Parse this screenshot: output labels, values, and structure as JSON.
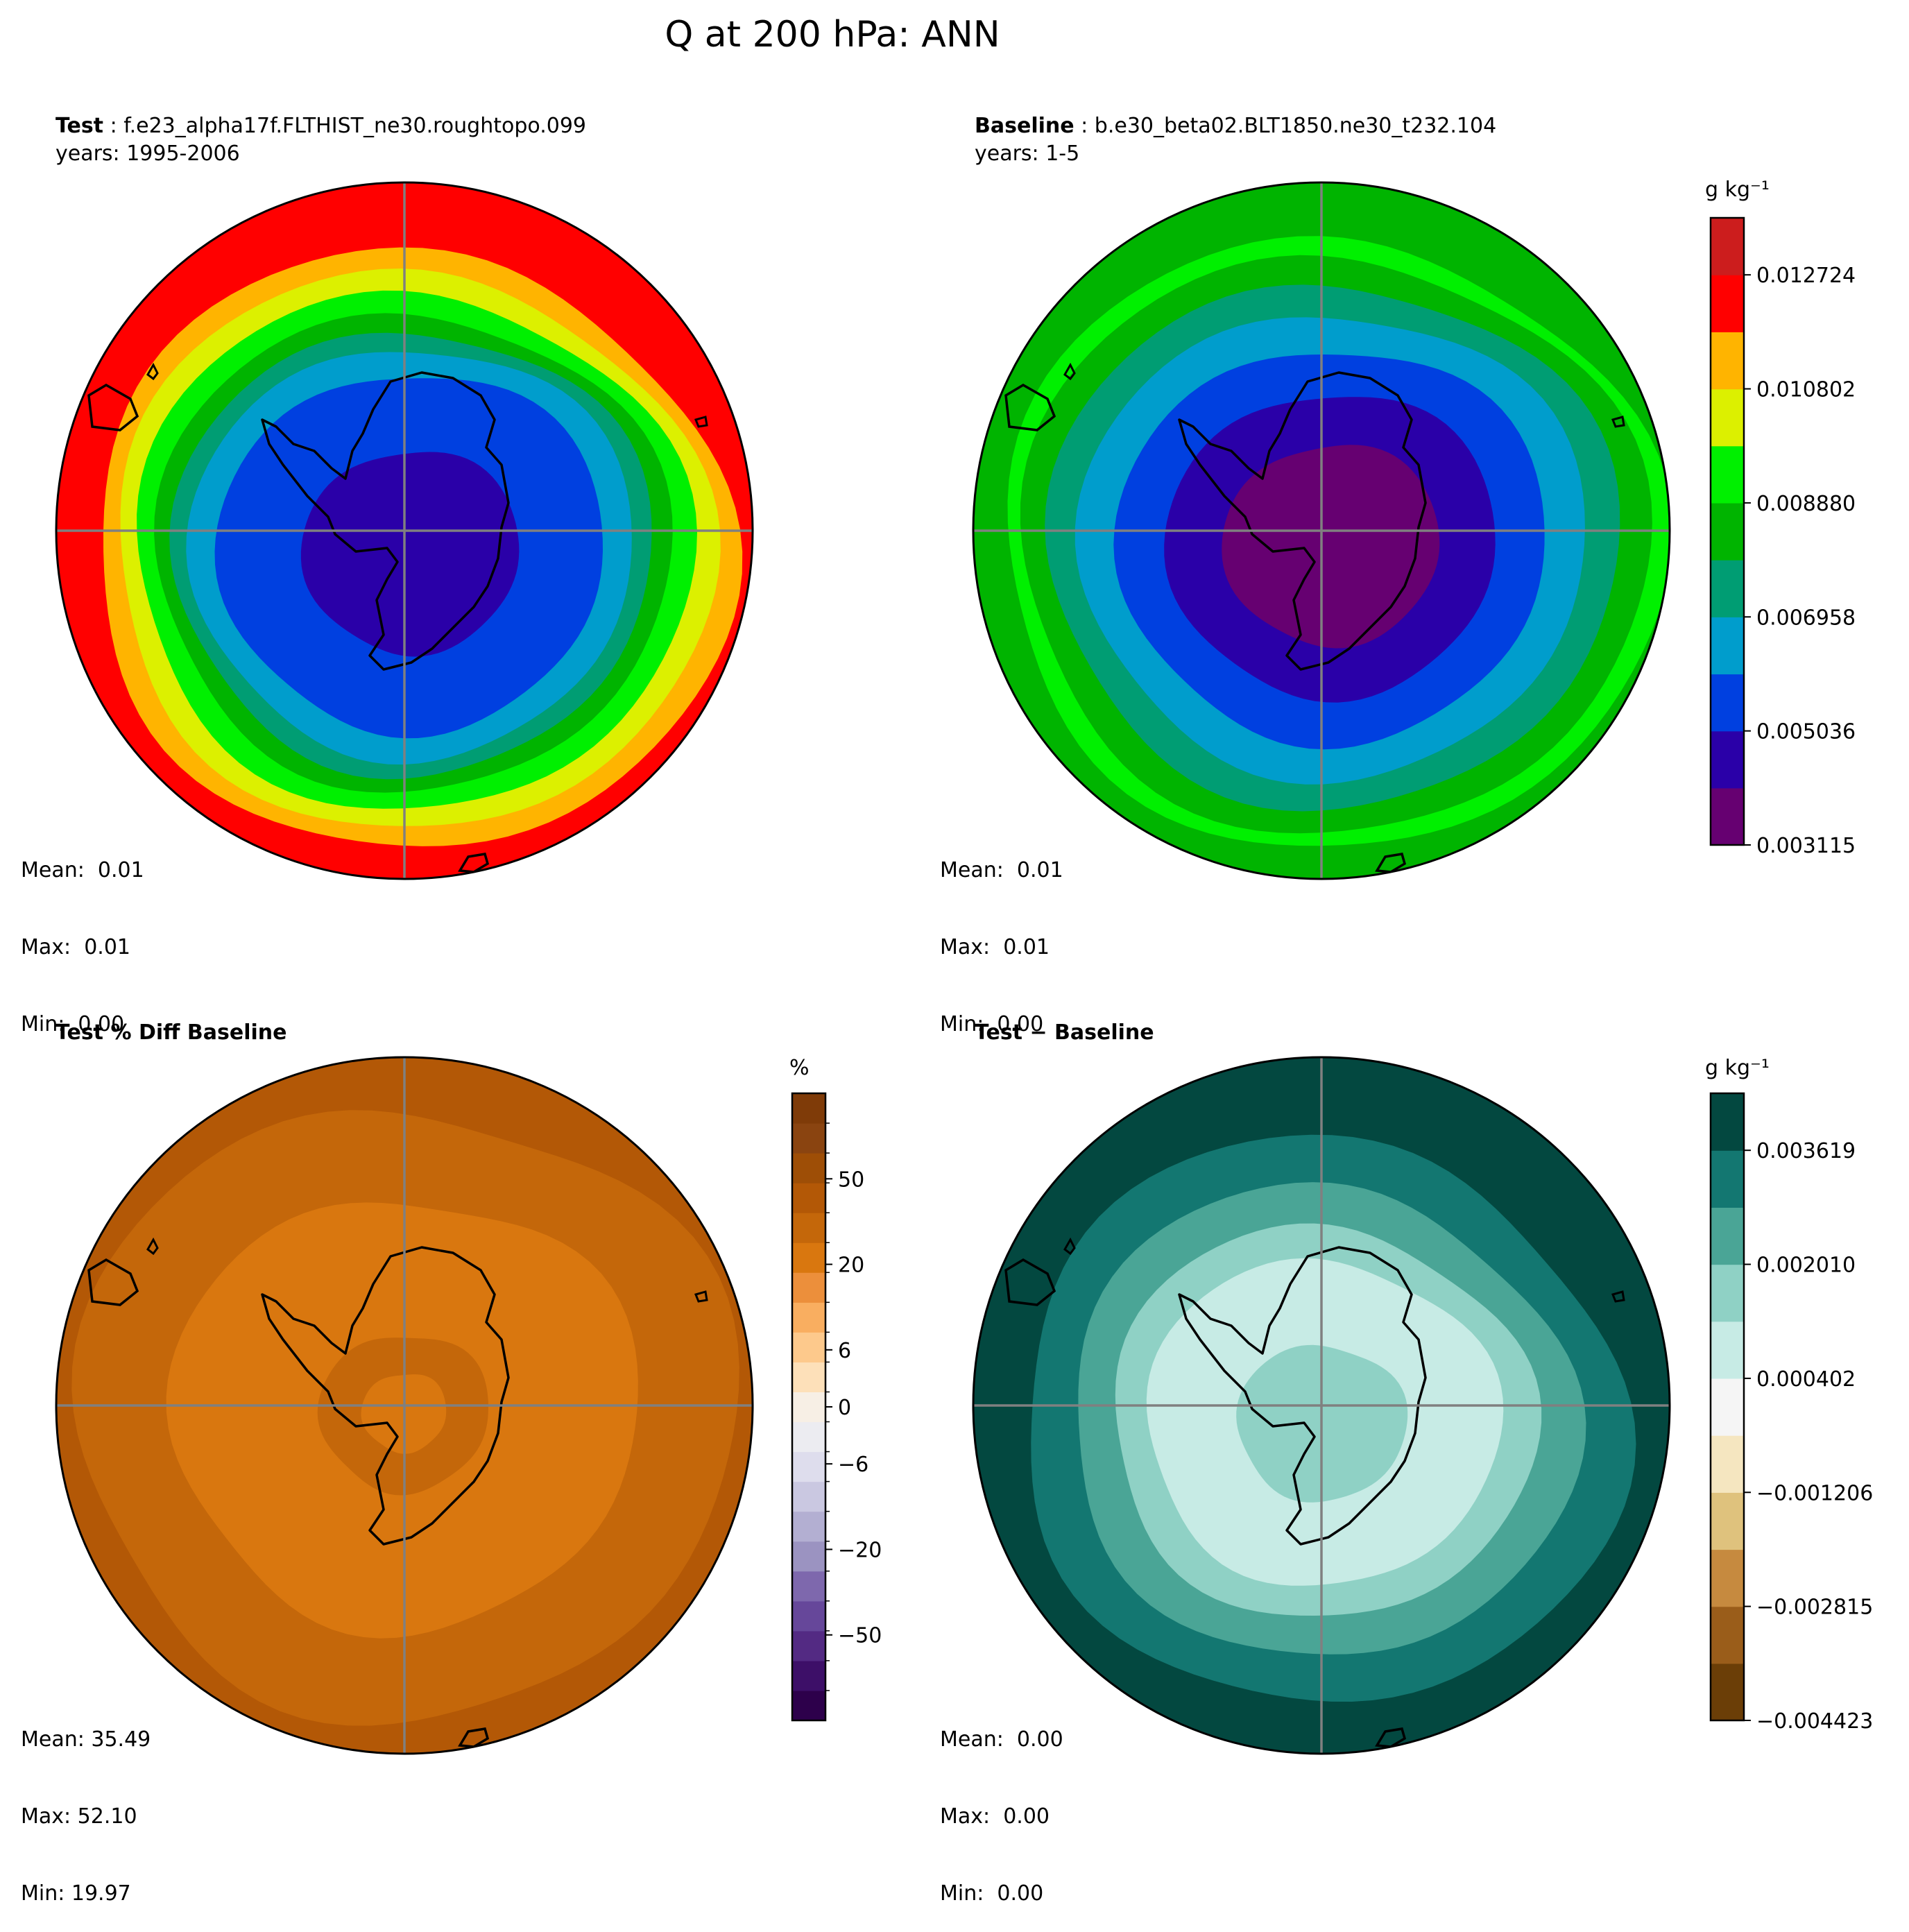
{
  "figure": {
    "title": "Q at 200 hPa: ANN"
  },
  "colors": {
    "rainbow": [
      "#660071",
      "#2a00a8",
      "#0040e0",
      "#009dcc",
      "#009d73",
      "#00b400",
      "#00f000",
      "#dcf000",
      "#ffb400",
      "#ff0000",
      "#cc1d1d"
    ],
    "puor": [
      "#2d004b",
      "#3d0f68",
      "#532a83",
      "#66479a",
      "#7e68ad",
      "#9b93c1",
      "#b3afd2",
      "#cac8e1",
      "#dedded",
      "#ececf1",
      "#f7efe5",
      "#fde0b9",
      "#fdc98c",
      "#f9ae60",
      "#ec8f3b",
      "#d9770f",
      "#c4670a",
      "#b35806",
      "#9e4e06",
      "#8a4410",
      "#7f3b08"
    ],
    "brbg": [
      "#6b3e07",
      "#9a5d1a",
      "#c68a3f",
      "#dfc27d",
      "#f5e6c0",
      "#f5f5f5",
      "#c7ebe5",
      "#8fd1c5",
      "#4aa596",
      "#137771",
      "#034840"
    ],
    "grid": "#808080",
    "coast": "#000000"
  },
  "panels": [
    {
      "id": "test",
      "label": "Test",
      "sep": " : ",
      "case": "f.e23_alpha17f.FLTHIST_ne30.roughtopo.099",
      "years": "years: 1995-2006",
      "mean": "Mean:  0.01",
      "max": "Max:  0.01",
      "min": "Min:  0.00"
    },
    {
      "id": "baseline",
      "label": "Baseline",
      "sep": " : ",
      "case": "b.e30_beta02.BLT1850.ne30_t232.104",
      "years": "years: 1-5",
      "mean": "Mean:  0.01",
      "max": "Max:  0.01",
      "min": "Min:  0.00"
    },
    {
      "id": "pctdiff",
      "label": "Test % Diff Baseline",
      "mean": "Mean: 35.49",
      "max": "Max: 52.10",
      "min": "Min: 19.97"
    },
    {
      "id": "diff",
      "label": "Test − Baseline",
      "mean": "Mean:  0.00",
      "max": "Max:  0.00",
      "min": "Min:  0.00"
    }
  ],
  "colorbars": [
    {
      "id": "cb-mean",
      "label": "g kg⁻¹",
      "ticks": [
        "0.003115",
        "0.005036",
        "0.006958",
        "0.008880",
        "0.010802",
        "0.012724"
      ],
      "range": [
        0.003115,
        0.013685
      ]
    },
    {
      "id": "cb-pct",
      "label": "%",
      "ticks": [
        "−50",
        "−20",
        "−6",
        "0",
        "6",
        "20",
        "50"
      ],
      "levels": [
        -100,
        -80,
        -60,
        -50,
        -40,
        -30,
        -20,
        -15,
        -10,
        -6,
        -2,
        0,
        2,
        6,
        10,
        15,
        20,
        30,
        40,
        50,
        60,
        80,
        100
      ]
    },
    {
      "id": "cb-diff",
      "label": "g kg⁻¹",
      "ticks": [
        "−0.004423",
        "−0.002815",
        "−0.001206",
        "0.000402",
        "0.002010",
        "0.003619"
      ],
      "range": [
        -0.004423,
        0.004423
      ]
    }
  ],
  "chart_data": [
    {
      "type": "heatmap",
      "projection": "south-polar-stereographic",
      "title": "Test : f.e23_alpha17f.FLTHIST_ne30.roughtopo.099",
      "subtitle": "years: 1995-2006",
      "variable": "Q",
      "level_hPa": 200,
      "units": "g kg-1",
      "radial_profile": {
        "lat_from_pole_bands": [
          "interior",
          "edge"
        ],
        "values_approx": [
          0.0045,
          0.0055,
          0.0065,
          0.0075,
          0.0085,
          0.0095,
          0.0105,
          0.0115,
          0.0125,
          0.0135
        ]
      },
      "mean": 0.01,
      "max": 0.01,
      "min": 0.0
    },
    {
      "type": "heatmap",
      "projection": "south-polar-stereographic",
      "title": "Baseline : b.e30_beta02.BLT1850.ne30_t232.104",
      "subtitle": "years: 1-5",
      "variable": "Q",
      "level_hPa": 200,
      "units": "g kg-1",
      "radial_profile": {
        "values_approx": [
          0.0035,
          0.0045,
          0.0055,
          0.0065,
          0.0075,
          0.0085,
          0.0095,
          0.0105
        ]
      },
      "mean": 0.01,
      "max": 0.01,
      "min": 0.0
    },
    {
      "type": "heatmap",
      "projection": "south-polar-stereographic",
      "title": "Test % Diff Baseline",
      "units": "%",
      "radial_profile": {
        "values_approx": [
          35,
          30,
          35,
          45,
          55
        ]
      },
      "mean": 35.49,
      "max": 52.1,
      "min": 19.97
    },
    {
      "type": "heatmap",
      "projection": "south-polar-stereographic",
      "title": "Test − Baseline",
      "units": "g kg-1",
      "radial_profile": {
        "values_approx": [
          0.0008,
          0.0016,
          0.0024,
          0.0032,
          0.004
        ]
      },
      "mean": 0.0,
      "max": 0.0,
      "min": 0.0
    }
  ]
}
